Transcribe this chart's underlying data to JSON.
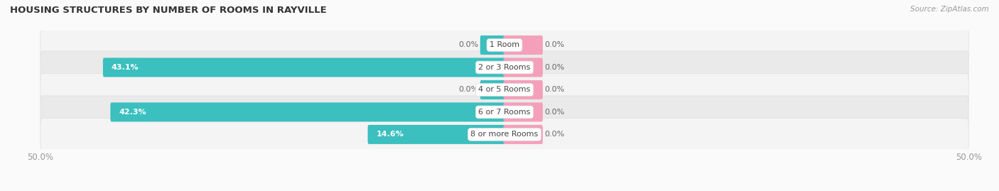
{
  "title": "HOUSING STRUCTURES BY NUMBER OF ROOMS IN RAYVILLE",
  "source": "Source: ZipAtlas.com",
  "categories": [
    "1 Room",
    "2 or 3 Rooms",
    "4 or 5 Rooms",
    "6 or 7 Rooms",
    "8 or more Rooms"
  ],
  "owner_values": [
    0.0,
    43.1,
    0.0,
    42.3,
    14.6
  ],
  "renter_values": [
    0.0,
    0.0,
    0.0,
    0.0,
    0.0
  ],
  "owner_color": "#3BBFBF",
  "renter_color": "#F5A0BB",
  "max_value": 50.0,
  "label_color_dark": "#666666",
  "label_color_light": "#ffffff",
  "title_color": "#333333",
  "axis_label_color": "#999999",
  "background_color": "#FAFAFA",
  "stripe_light": "#F4F4F4",
  "stripe_dark": "#EAEAEA",
  "row_sep_color": "#DDDDDD",
  "min_bar_stub": 2.5,
  "renter_stub": 4.0
}
